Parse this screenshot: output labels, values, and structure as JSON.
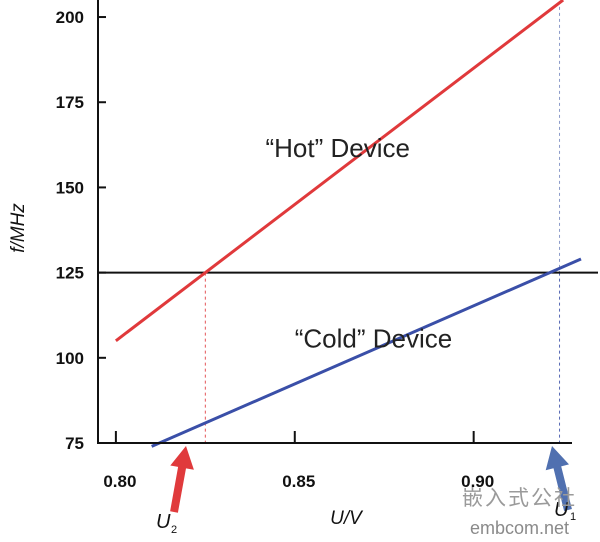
{
  "chart_data": {
    "type": "line",
    "xlabel": "U/V",
    "ylabel": "f/MHz",
    "xlim": [
      0.795,
      0.93
    ],
    "ylim": [
      75,
      205
    ],
    "x_ticks": [
      0.8,
      0.85,
      0.9
    ],
    "x_tick_labels": [
      "0.80",
      "0.85",
      "0.90"
    ],
    "y_ticks": [
      75,
      100,
      125,
      150,
      175,
      200
    ],
    "y_tick_labels": [
      "75",
      "100",
      "125",
      "150",
      "175",
      "200"
    ],
    "grid": false,
    "series": [
      {
        "color": "#e0393b",
        "x": [
          0.8,
          0.925
        ],
        "y": [
          105,
          205
        ]
      },
      {
        "color": "#3a4fa8",
        "x": [
          0.81,
          0.93
        ],
        "y": [
          74,
          129
        ]
      }
    ],
    "reference_line": {
      "y": 125,
      "color": "#111111"
    },
    "annotations": [
      {
        "text": "“Hot” Device",
        "x": 0.862,
        "y": 159
      },
      {
        "text": "“Cold” Device",
        "x": 0.872,
        "y": 103
      }
    ],
    "markers": [
      {
        "label": "U",
        "sub": "2",
        "x": 0.825,
        "y": 125,
        "color": "#e0393b",
        "arrow_color": "#e03a3c"
      },
      {
        "label": "U",
        "sub": "1",
        "x": 0.924,
        "y": 125,
        "color": "#3a4fa8",
        "arrow_color": "#5070b0"
      }
    ]
  },
  "watermark": {
    "cn": "嵌入式公社",
    "en": "embcom.net"
  }
}
